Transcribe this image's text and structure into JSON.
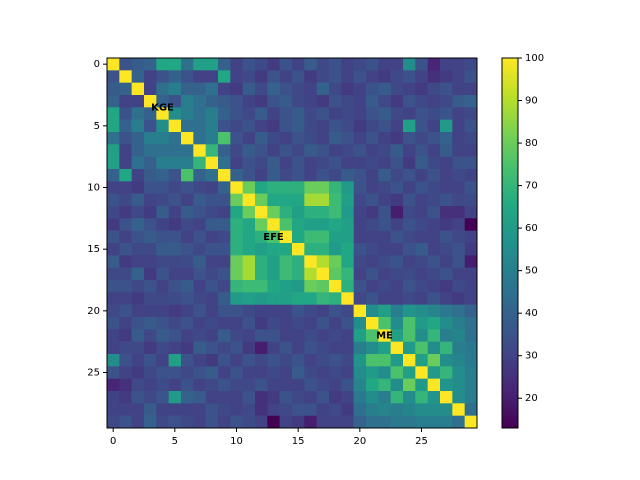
{
  "chart_data": {
    "type": "heatmap",
    "cmap": "viridis",
    "xlim": [
      -0.5,
      29.5
    ],
    "ylim": [
      29.5,
      -0.5
    ],
    "xticks": [
      0,
      5,
      10,
      15,
      20,
      25
    ],
    "yticks": [
      0,
      5,
      10,
      15,
      20,
      25
    ],
    "clim": [
      13,
      100
    ],
    "cticks": [
      20,
      30,
      40,
      50,
      60,
      70,
      80,
      90,
      100
    ],
    "annotations": [
      {
        "text": "KGE",
        "x": 4,
        "y": 3.5
      },
      {
        "text": "EFE",
        "x": 13,
        "y": 14
      },
      {
        "text": "ME",
        "x": 22,
        "y": 22
      }
    ],
    "z": [
      [
        100,
        35,
        38,
        40,
        65,
        65,
        45,
        62,
        62,
        40,
        30,
        35,
        32,
        28,
        35,
        30,
        38,
        32,
        35,
        30,
        32,
        35,
        30,
        30,
        55,
        35,
        22,
        30,
        30,
        32
      ],
      [
        35,
        100,
        40,
        30,
        35,
        40,
        35,
        30,
        30,
        65,
        30,
        32,
        28,
        35,
        30,
        35,
        28,
        32,
        35,
        30,
        35,
        30,
        28,
        32,
        35,
        30,
        25,
        28,
        30,
        35
      ],
      [
        38,
        40,
        100,
        30,
        45,
        50,
        40,
        40,
        45,
        30,
        28,
        38,
        32,
        40,
        35,
        32,
        30,
        40,
        32,
        28,
        30,
        35,
        38,
        32,
        30,
        28,
        32,
        35,
        30,
        30
      ],
      [
        40,
        30,
        30,
        100,
        40,
        35,
        50,
        45,
        40,
        38,
        35,
        30,
        28,
        35,
        38,
        32,
        30,
        28,
        35,
        32,
        30,
        38,
        32,
        28,
        35,
        32,
        30,
        32,
        38,
        40
      ],
      [
        65,
        35,
        45,
        40,
        100,
        55,
        50,
        45,
        50,
        40,
        35,
        32,
        38,
        30,
        35,
        38,
        32,
        35,
        30,
        32,
        30,
        35,
        38,
        32,
        30,
        35,
        33,
        36,
        30,
        32
      ],
      [
        65,
        40,
        50,
        35,
        55,
        100,
        45,
        45,
        50,
        35,
        32,
        35,
        30,
        28,
        35,
        38,
        32,
        30,
        35,
        33,
        28,
        32,
        35,
        30,
        62,
        35,
        30,
        60,
        30,
        35
      ],
      [
        45,
        35,
        40,
        50,
        50,
        45,
        100,
        45,
        50,
        75,
        35,
        30,
        38,
        32,
        30,
        35,
        33,
        30,
        38,
        35,
        30,
        35,
        30,
        28,
        35,
        32,
        35,
        40,
        30,
        32
      ],
      [
        62,
        30,
        40,
        45,
        45,
        45,
        45,
        100,
        70,
        40,
        32,
        38,
        35,
        30,
        35,
        32,
        38,
        35,
        30,
        32,
        35,
        30,
        32,
        38,
        30,
        35,
        30,
        38,
        30,
        30
      ],
      [
        62,
        30,
        45,
        40,
        50,
        50,
        50,
        70,
        100,
        45,
        30,
        35,
        32,
        38,
        30,
        35,
        30,
        32,
        35,
        30,
        30,
        32,
        30,
        35,
        28,
        38,
        32,
        30,
        35,
        35
      ],
      [
        40,
        65,
        30,
        38,
        40,
        35,
        75,
        40,
        45,
        100,
        40,
        35,
        30,
        38,
        32,
        35,
        30,
        35,
        32,
        38,
        35,
        30,
        38,
        32,
        35,
        30,
        35,
        30,
        32,
        30
      ],
      [
        30,
        30,
        28,
        35,
        35,
        32,
        35,
        32,
        30,
        40,
        100,
        80,
        65,
        68,
        68,
        68,
        80,
        80,
        70,
        60,
        35,
        30,
        32,
        35,
        30,
        35,
        32,
        30,
        30,
        35
      ],
      [
        35,
        32,
        38,
        30,
        32,
        35,
        30,
        38,
        35,
        35,
        80,
        100,
        80,
        65,
        65,
        65,
        88,
        88,
        72,
        62,
        32,
        35,
        30,
        28,
        35,
        30,
        32,
        35,
        32,
        33
      ],
      [
        32,
        28,
        32,
        28,
        38,
        30,
        38,
        35,
        32,
        30,
        65,
        80,
        100,
        80,
        68,
        62,
        68,
        68,
        72,
        60,
        30,
        28,
        35,
        20,
        32,
        30,
        35,
        25,
        25,
        30
      ],
      [
        28,
        35,
        40,
        35,
        30,
        28,
        32,
        30,
        38,
        38,
        68,
        65,
        80,
        100,
        75,
        65,
        62,
        62,
        65,
        62,
        30,
        32,
        35,
        30,
        35,
        32,
        30,
        28,
        30,
        13
      ],
      [
        35,
        30,
        35,
        38,
        35,
        35,
        30,
        35,
        30,
        32,
        68,
        65,
        68,
        75,
        100,
        65,
        72,
        72,
        62,
        62,
        30,
        30,
        30,
        35,
        32,
        30,
        30,
        35,
        32,
        30
      ],
      [
        30,
        35,
        32,
        32,
        38,
        38,
        35,
        32,
        35,
        35,
        68,
        65,
        62,
        65,
        65,
        100,
        68,
        68,
        60,
        65,
        35,
        32,
        30,
        30,
        35,
        38,
        30,
        32,
        35,
        28
      ],
      [
        38,
        28,
        30,
        30,
        32,
        32,
        33,
        38,
        30,
        30,
        80,
        88,
        68,
        62,
        72,
        68,
        100,
        90,
        80,
        65,
        32,
        30,
        33,
        35,
        30,
        32,
        35,
        30,
        35,
        20
      ],
      [
        32,
        32,
        40,
        28,
        35,
        30,
        30,
        35,
        32,
        35,
        80,
        88,
        68,
        62,
        72,
        68,
        90,
        100,
        78,
        70,
        30,
        35,
        30,
        32,
        33,
        30,
        32,
        35,
        30,
        30
      ],
      [
        35,
        35,
        32,
        35,
        30,
        35,
        38,
        30,
        35,
        32,
        70,
        72,
        72,
        65,
        62,
        60,
        80,
        78,
        100,
        68,
        35,
        30,
        32,
        30,
        35,
        32,
        30,
        28,
        32,
        30
      ],
      [
        30,
        30,
        28,
        32,
        32,
        33,
        35,
        32,
        30,
        38,
        60,
        62,
        60,
        62,
        62,
        65,
        65,
        70,
        68,
        100,
        32,
        35,
        30,
        30,
        32,
        30,
        35,
        30,
        28,
        30
      ],
      [
        32,
        35,
        30,
        30,
        30,
        28,
        30,
        35,
        30,
        35,
        35,
        32,
        30,
        30,
        30,
        35,
        32,
        30,
        35,
        32,
        100,
        55,
        62,
        50,
        58,
        55,
        52,
        48,
        45,
        40
      ],
      [
        35,
        30,
        35,
        38,
        35,
        32,
        35,
        30,
        32,
        30,
        30,
        35,
        28,
        32,
        30,
        32,
        30,
        35,
        30,
        35,
        55,
        100,
        75,
        55,
        75,
        60,
        65,
        55,
        50,
        45
      ],
      [
        30,
        28,
        38,
        32,
        38,
        35,
        30,
        32,
        30,
        38,
        32,
        30,
        35,
        35,
        30,
        30,
        33,
        30,
        32,
        30,
        62,
        75,
        100,
        62,
        75,
        55,
        70,
        50,
        52,
        45
      ],
      [
        30,
        32,
        32,
        28,
        32,
        30,
        28,
        38,
        35,
        32,
        35,
        28,
        20,
        30,
        35,
        30,
        35,
        32,
        30,
        30,
        50,
        55,
        62,
        100,
        60,
        75,
        55,
        70,
        50,
        48
      ],
      [
        55,
        35,
        30,
        35,
        30,
        62,
        35,
        30,
        28,
        35,
        30,
        35,
        32,
        35,
        32,
        35,
        30,
        33,
        35,
        32,
        58,
        75,
        75,
        60,
        100,
        62,
        80,
        55,
        52,
        48
      ],
      [
        35,
        30,
        28,
        32,
        35,
        35,
        32,
        35,
        38,
        30,
        35,
        30,
        30,
        32,
        30,
        38,
        32,
        30,
        32,
        30,
        55,
        60,
        55,
        75,
        62,
        100,
        60,
        70,
        55,
        50
      ],
      [
        22,
        25,
        32,
        30,
        33,
        30,
        35,
        30,
        32,
        35,
        32,
        32,
        35,
        30,
        30,
        30,
        35,
        32,
        30,
        35,
        52,
        65,
        70,
        55,
        80,
        60,
        100,
        58,
        55,
        50
      ],
      [
        30,
        28,
        35,
        32,
        36,
        60,
        40,
        38,
        30,
        30,
        30,
        35,
        25,
        28,
        35,
        32,
        30,
        35,
        28,
        30,
        48,
        55,
        50,
        70,
        55,
        70,
        58,
        100,
        55,
        50
      ],
      [
        30,
        30,
        30,
        38,
        30,
        30,
        30,
        30,
        35,
        32,
        30,
        32,
        25,
        30,
        32,
        35,
        35,
        30,
        32,
        28,
        45,
        50,
        52,
        50,
        52,
        55,
        55,
        55,
        100,
        45
      ],
      [
        32,
        35,
        30,
        40,
        32,
        35,
        32,
        30,
        35,
        30,
        35,
        33,
        30,
        13,
        30,
        28,
        20,
        30,
        30,
        30,
        40,
        45,
        45,
        48,
        48,
        50,
        50,
        50,
        45,
        100
      ]
    ]
  }
}
